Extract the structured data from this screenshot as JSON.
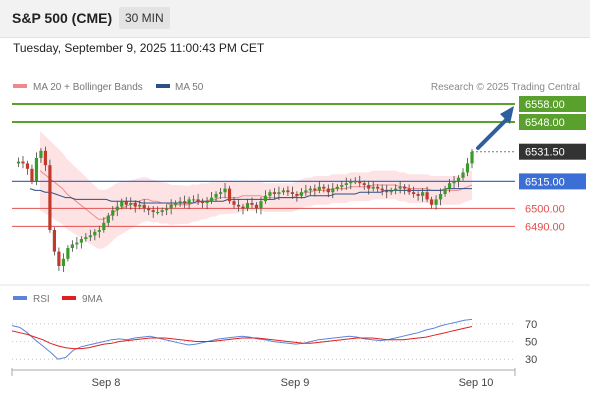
{
  "header": {
    "title": "S&P 500 (CME)",
    "timeframe": "30 MIN"
  },
  "datetime": "Tuesday, September 9, 2025 11:00:43 PM CET",
  "legend": {
    "bollinger_label": "MA 20 + Bollinger Bands",
    "ma50_label": "MA 50",
    "source": "Research © 2025 Trading Central"
  },
  "colors": {
    "resistance": "#5aa02c",
    "support": "#e05050",
    "current": "#3b6fd6",
    "pivot": "#3b6fd6",
    "bullish": "#3a9a2a",
    "bearish": "#c0392b",
    "bollinger": "#f08a8a",
    "ma50": "#2c4f8a",
    "arrow": "#2d5f9e",
    "rsi": "#5b84d8",
    "rsi_ma": "#e02020"
  },
  "chart_data": [
    {
      "type": "candlestick",
      "x_labels": [
        "Sep 8",
        "Sep 9",
        "Sep 10"
      ],
      "ylim": [
        6463,
        6563
      ],
      "levels": [
        {
          "value": 6558.0,
          "label": "6558.00",
          "kind": "resistance"
        },
        {
          "value": 6548.0,
          "label": "6548.00",
          "kind": "resistance"
        },
        {
          "value": 6531.5,
          "label": "6531.50",
          "kind": "current"
        },
        {
          "value": 6515.0,
          "label": "6515.00",
          "kind": "pivot"
        },
        {
          "value": 6500.0,
          "label": "6500.00",
          "kind": "support"
        },
        {
          "value": 6490.0,
          "label": "6490.00",
          "kind": "support"
        }
      ],
      "price_path": [
        6525,
        6526,
        6525,
        6522,
        6515,
        6528,
        6532,
        6524,
        6488,
        6476,
        6468,
        6472,
        6478,
        6480,
        6481,
        6483,
        6484,
        6485,
        6487,
        6488,
        6492,
        6496,
        6499,
        6501,
        6504,
        6502,
        6503,
        6501,
        6502,
        6500,
        6499,
        6498,
        6498,
        6499,
        6500,
        6502,
        6503,
        6504,
        6503,
        6505,
        6505,
        6504,
        6503,
        6504,
        6506,
        6508,
        6509,
        6511,
        6504,
        6502,
        6501,
        6500,
        6503,
        6502,
        6500,
        6504,
        6507,
        6509,
        6508,
        6509,
        6510,
        6509,
        6508,
        6507,
        6509,
        6510,
        6511,
        6510,
        6512,
        6511,
        6509,
        6511,
        6512,
        6513,
        6514,
        6515,
        6515,
        6514,
        6513,
        6511,
        6512,
        6511,
        6510,
        6509,
        6510,
        6511,
        6512,
        6511,
        6509,
        6508,
        6507,
        6509,
        6505,
        6502,
        6505,
        6508,
        6511,
        6514,
        6515,
        6517,
        6520,
        6525,
        6531.5
      ],
      "ma20": [
        6521,
        6519,
        6517,
        6515,
        6513,
        6511,
        6508,
        6506,
        6504,
        6502,
        6500,
        6498,
        6496,
        6494,
        6494,
        6495,
        6497,
        6499,
        6500,
        6501,
        6502,
        6503,
        6504,
        6505,
        6505,
        6504,
        6504,
        6503,
        6503,
        6502,
        6502,
        6502,
        6502,
        6502,
        6503,
        6503,
        6504,
        6504,
        6505,
        6505,
        6506,
        6506,
        6506,
        6506,
        6506,
        6507,
        6507,
        6507,
        6507,
        6507,
        6506,
        6506,
        6506,
        6506,
        6506,
        6506,
        6506,
        6507,
        6508,
        6509,
        6509,
        6510,
        6510,
        6510,
        6510,
        6511,
        6511,
        6511,
        6511,
        6512,
        6512,
        6512,
        6512,
        6512,
        6513,
        6513,
        6513,
        6513,
        6513,
        6513,
        6512,
        6512,
        6511,
        6511,
        6511,
        6511,
        6511,
        6510,
        6510,
        6510,
        6510,
        6510,
        6510,
        6510,
        6511,
        6512,
        6513
      ],
      "ma50": [
        6511,
        6510,
        6510,
        6509,
        6509,
        6508,
        6507,
        6506,
        6506,
        6505,
        6505,
        6505,
        6505,
        6505,
        6505,
        6505,
        6504,
        6504,
        6504,
        6504,
        6504,
        6504,
        6503,
        6503,
        6503,
        6503,
        6503,
        6503,
        6503,
        6503,
        6503,
        6503,
        6503,
        6504,
        6504,
        6504,
        6504,
        6504,
        6504,
        6505,
        6505,
        6505,
        6505,
        6505,
        6505,
        6505,
        6505,
        6505,
        6505,
        6506,
        6506,
        6506,
        6506,
        6506,
        6506,
        6507,
        6507,
        6507,
        6507,
        6507,
        6508,
        6508,
        6508,
        6508,
        6508,
        6509,
        6509,
        6509,
        6509,
        6509,
        6510,
        6510,
        6510,
        6510,
        6510,
        6510,
        6510,
        6510,
        6510,
        6510,
        6510,
        6510,
        6511,
        6511,
        6511,
        6511,
        6511,
        6511
      ]
    },
    {
      "type": "line",
      "title": "RSI",
      "series": [
        {
          "name": "RSI"
        },
        {
          "name": "9MA"
        }
      ],
      "y_ticks": [
        70,
        50,
        30
      ],
      "ylim": [
        20,
        80
      ],
      "rsi": [
        68,
        66,
        60,
        52,
        45,
        38,
        30,
        32,
        40,
        44,
        46,
        48,
        50,
        52,
        53,
        52,
        54,
        55,
        56,
        54,
        52,
        50,
        48,
        46,
        47,
        49,
        51,
        53,
        54,
        55,
        56,
        55,
        53,
        52,
        50,
        49,
        48,
        47,
        48,
        50,
        52,
        53,
        54,
        55,
        56,
        55,
        53,
        52,
        51,
        52,
        54,
        56,
        58,
        60,
        63,
        65,
        68,
        70,
        72,
        74,
        75
      ],
      "rsi_ma": [
        62,
        60,
        58,
        55,
        52,
        48,
        45,
        43,
        42,
        42,
        43,
        45,
        47,
        48,
        50,
        51,
        52,
        53,
        54,
        54,
        54,
        53,
        52,
        51,
        50,
        50,
        50,
        51,
        52,
        53,
        54,
        54,
        54,
        53,
        52,
        51,
        50,
        49,
        48,
        48,
        49,
        50,
        51,
        52,
        53,
        54,
        54,
        54,
        53,
        52,
        52,
        52,
        53,
        54,
        55,
        57,
        59,
        61,
        63,
        65,
        67
      ]
    }
  ]
}
